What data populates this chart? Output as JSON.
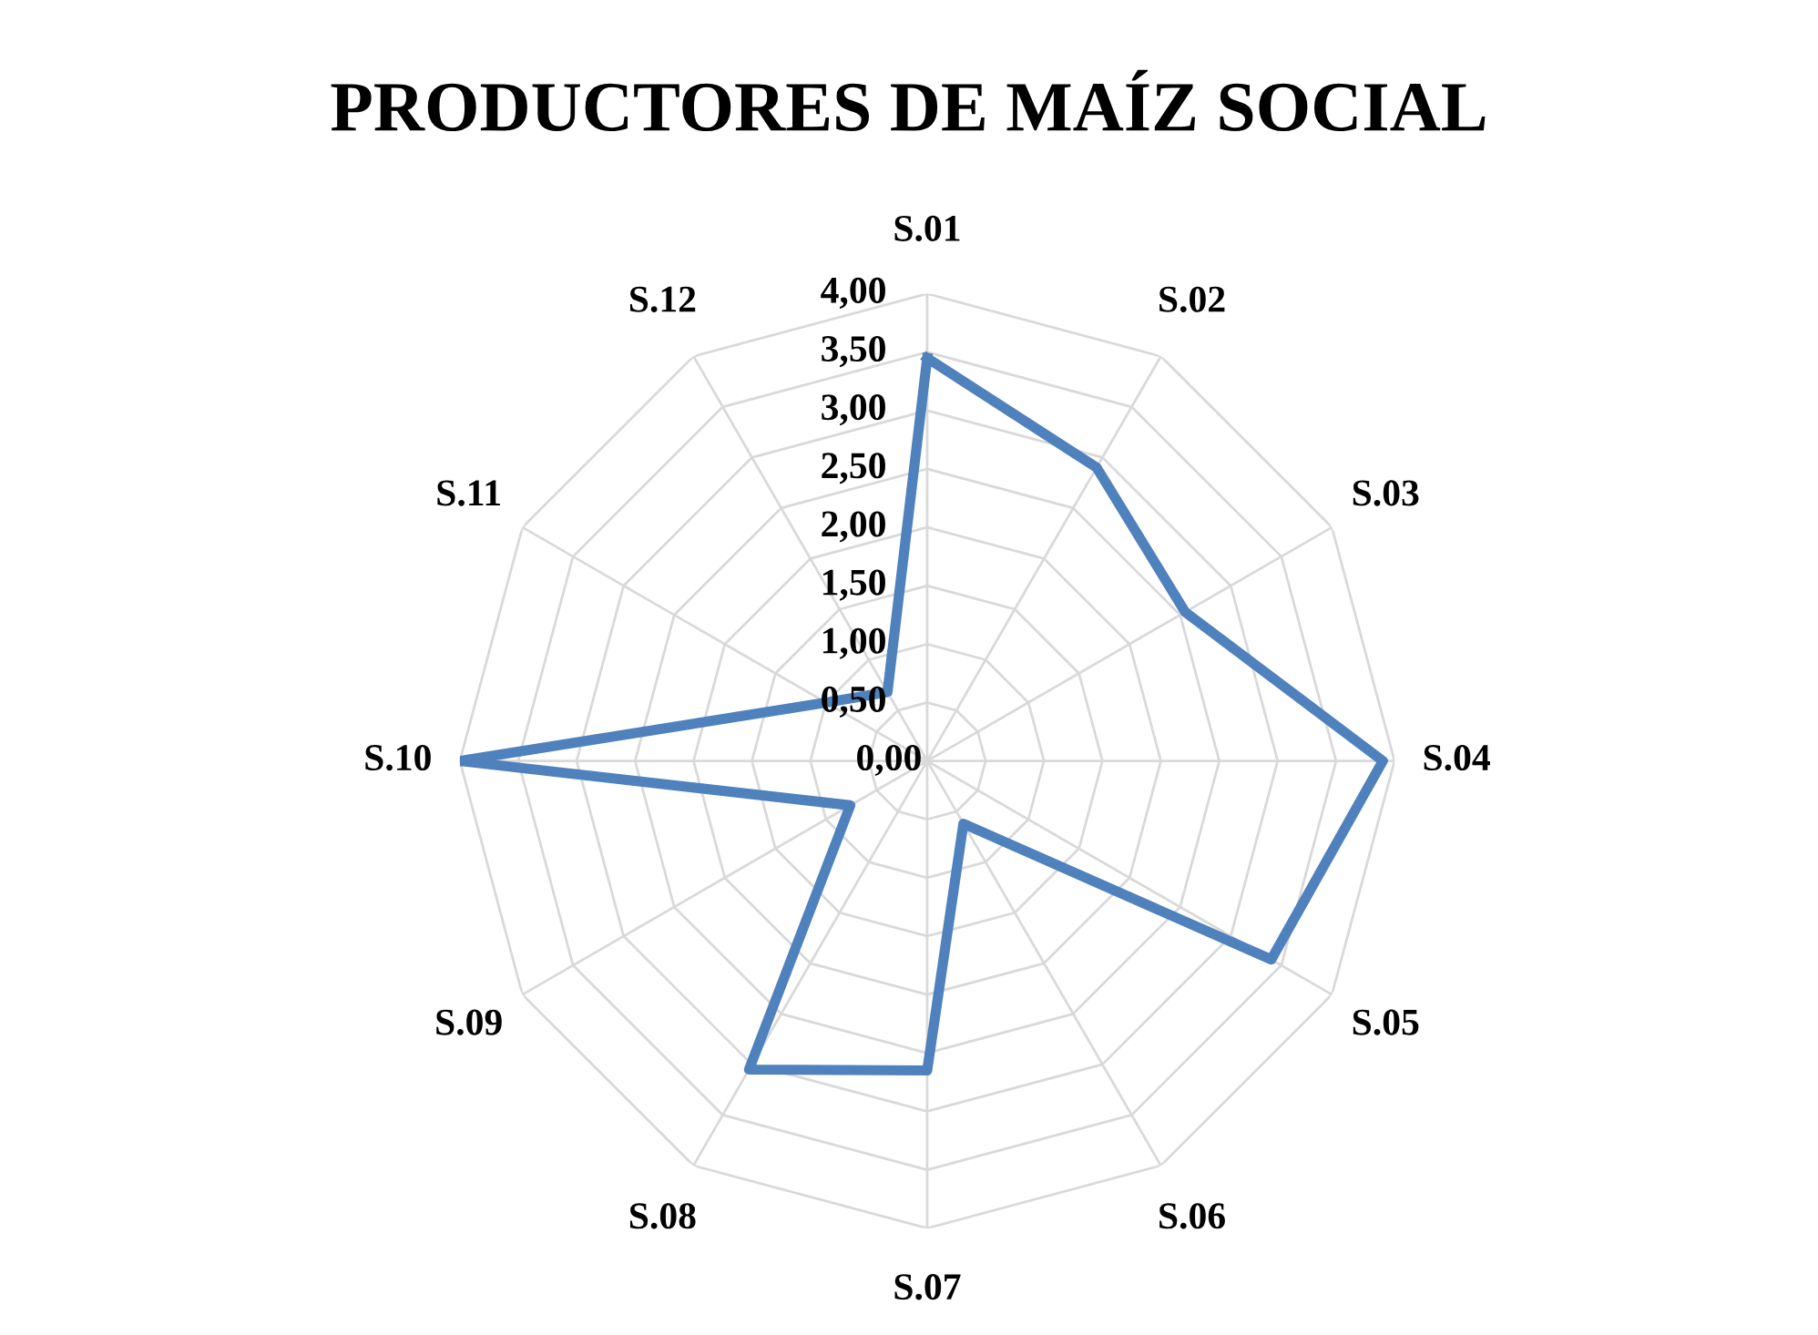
{
  "chart_data": {
    "type": "radar",
    "title": "PRODUCTORES DE MAÍZ SOCIAL",
    "categories": [
      "S.01",
      "S.02",
      "S.03",
      "S.04",
      "S.05",
      "S.06",
      "S.07",
      "S.08",
      "S.09",
      "S.10",
      "S.11",
      "S.12"
    ],
    "series": [
      {
        "color": "#4f81bd",
        "values": [
          3.45,
          2.9,
          2.55,
          3.9,
          3.4,
          0.62,
          2.65,
          3.05,
          0.76,
          4.0,
          1.0,
          0.68
        ]
      }
    ],
    "ylim": [
      0,
      4
    ],
    "yticks": [
      {
        "value": 0,
        "label": "0,00"
      },
      {
        "value": 0.5,
        "label": "0,50"
      },
      {
        "value": 1,
        "label": "1,00"
      },
      {
        "value": 1.5,
        "label": "1,50"
      },
      {
        "value": 2,
        "label": "2,00"
      },
      {
        "value": 2.5,
        "label": "2,50"
      },
      {
        "value": 3,
        "label": "3,00"
      },
      {
        "value": 3.5,
        "label": "3,50"
      },
      {
        "value": 4,
        "label": "4,00"
      }
    ],
    "grid": true,
    "marker": "none",
    "line_style": "solid"
  }
}
